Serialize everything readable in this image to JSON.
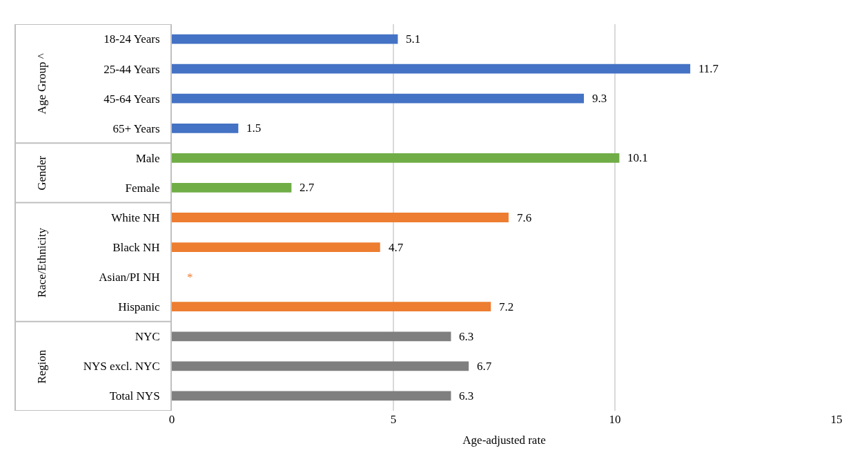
{
  "chart_data": {
    "type": "bar",
    "orientation": "horizontal",
    "xlabel": "Age-adjusted rate",
    "categories": [
      "18-24 Years",
      "25-44 Years",
      "45-64 Years",
      "65+ Years",
      "Male",
      "Female",
      "White NH",
      "Black NH",
      "Asian/PI NH",
      "Hispanic",
      "NYC",
      "NYS excl. NYC",
      "Total NYS"
    ],
    "values": [
      5.1,
      11.7,
      9.3,
      1.5,
      10.1,
      2.7,
      7.6,
      4.7,
      null,
      7.2,
      6.3,
      6.7,
      6.3
    ],
    "value_labels": [
      "5.1",
      "11.7",
      "9.3",
      "1.5",
      "10.1",
      "2.7",
      "7.6",
      "4.7",
      "*",
      "7.2",
      "6.3",
      "6.7",
      "6.3"
    ],
    "colors": [
      "#4472c4",
      "#4472c4",
      "#4472c4",
      "#4472c4",
      "#70ad47",
      "#70ad47",
      "#ed7d31",
      "#ed7d31",
      "#ed7d31",
      "#ed7d31",
      "#7f7f7f",
      "#7f7f7f",
      "#7f7f7f"
    ],
    "annotations": [
      "Age Group ^",
      "Gender",
      "Race/Ethnicity",
      "Region"
    ],
    "xlim": [
      0,
      15
    ],
    "xticks": [
      0,
      5,
      10,
      15
    ],
    "grid": "x"
  }
}
